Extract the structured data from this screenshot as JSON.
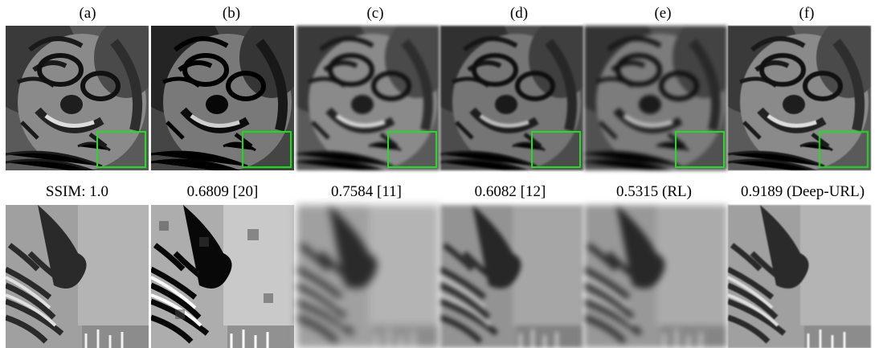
{
  "panels": [
    {
      "label": "(a)",
      "caption": "SSIM: 1.0"
    },
    {
      "label": "(b)",
      "caption": "0.6809 [20]"
    },
    {
      "label": "(c)",
      "caption": "0.7584 [11]"
    },
    {
      "label": "(d)",
      "caption": "0.6082 [12]"
    },
    {
      "label": "(e)",
      "caption": "0.5315 (RL)"
    },
    {
      "label": "(f)",
      "caption": "0.9189 (Deep-URL)"
    }
  ],
  "zoom_box_color": "#22dd22"
}
